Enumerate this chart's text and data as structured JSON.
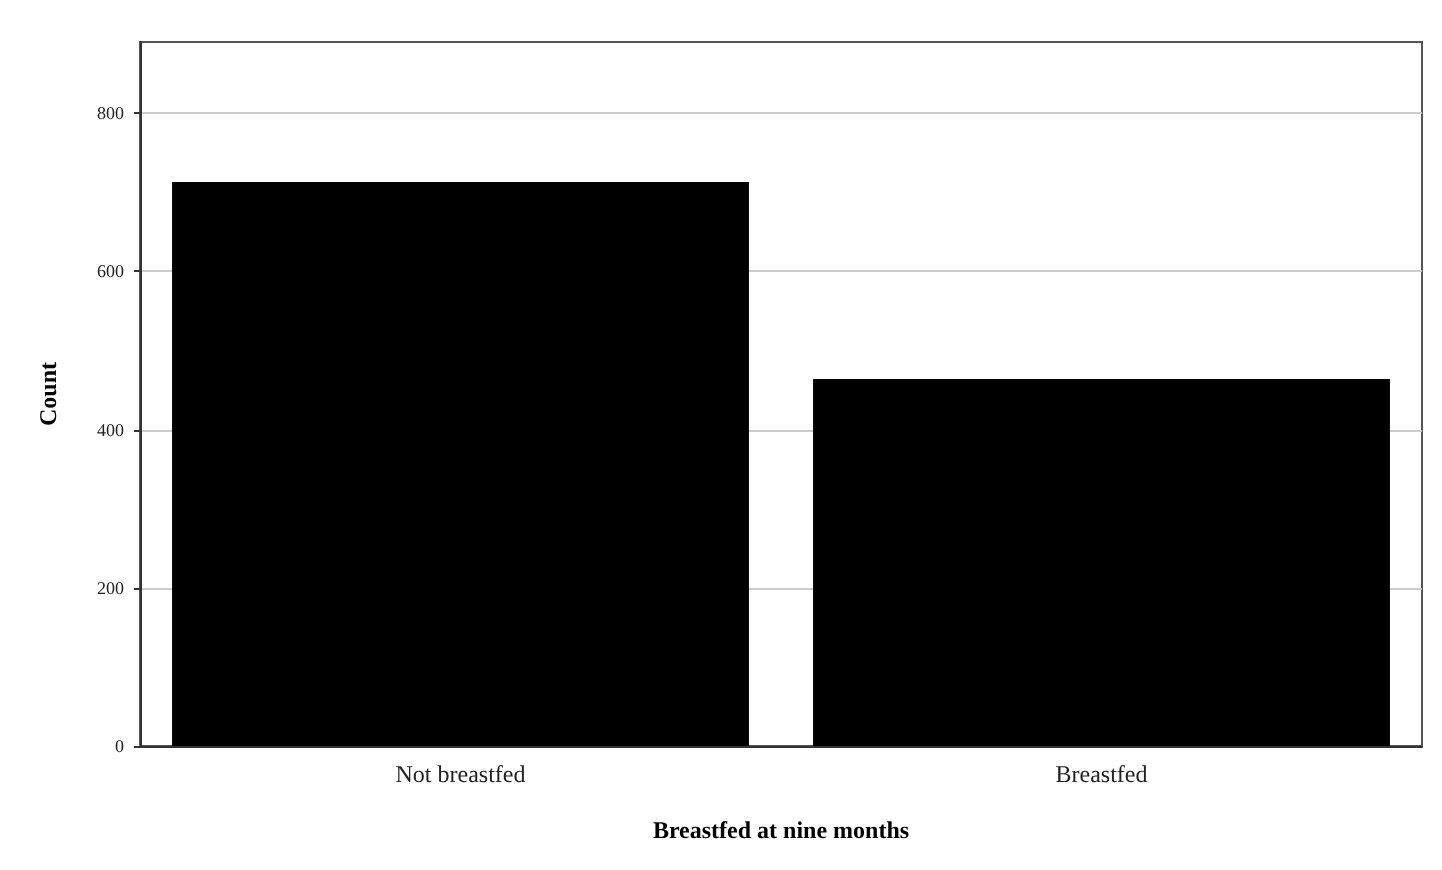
{
  "chart_data": {
    "type": "bar",
    "xlabel": "Breastfed at nine months",
    "ylabel": "Count",
    "categories": [
      "Not breastfed",
      "Breastfed"
    ],
    "values": [
      713,
      464
    ],
    "color": "#000000",
    "ylim": [
      0,
      890
    ],
    "yticks": [
      0,
      200,
      400,
      600,
      800
    ],
    "grid": "y"
  }
}
